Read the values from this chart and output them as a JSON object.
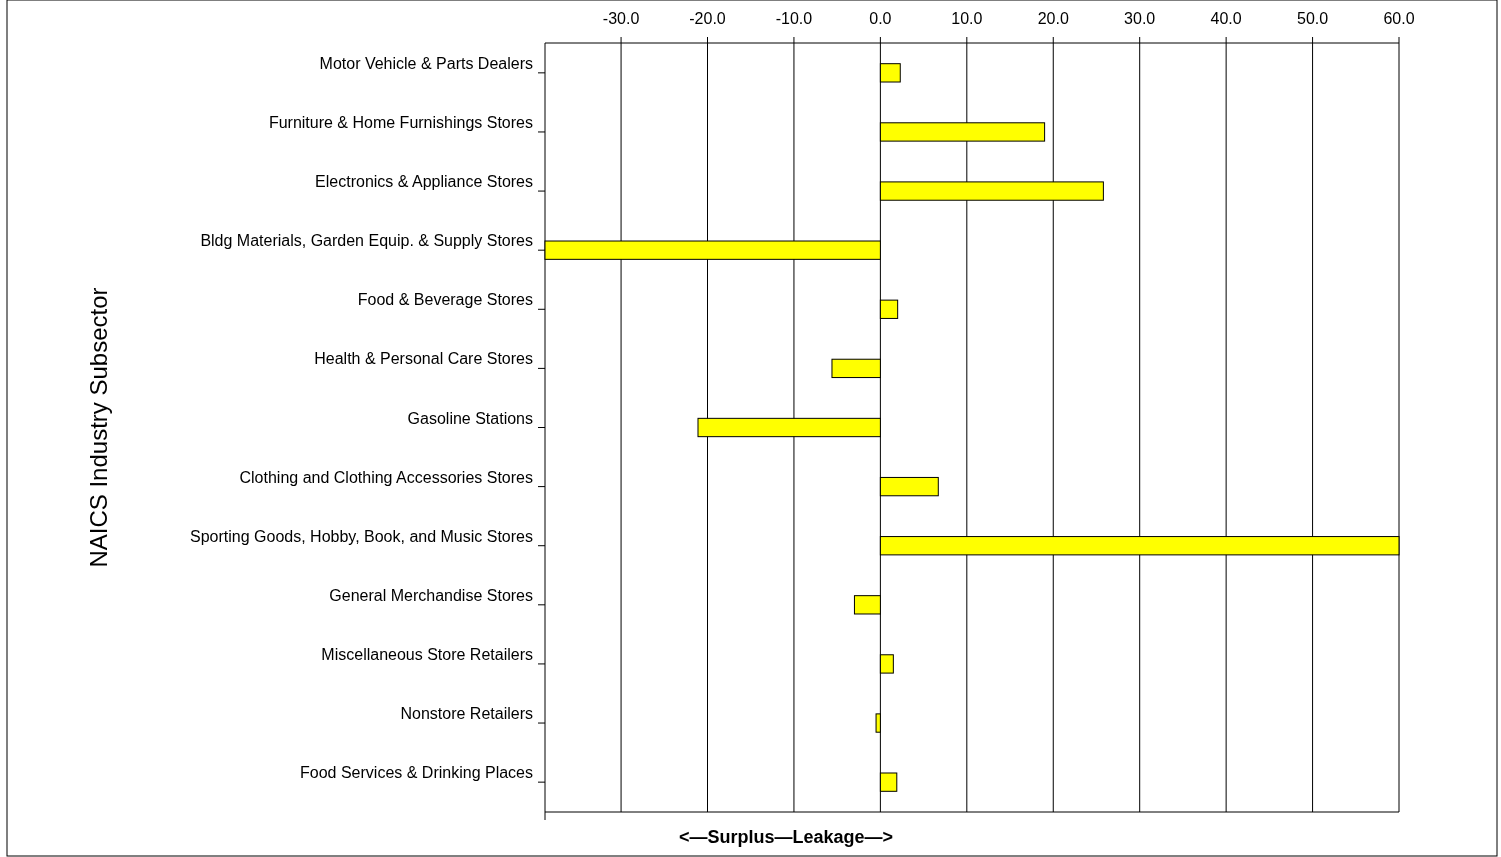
{
  "chart_data": {
    "type": "bar",
    "orientation": "horizontal",
    "xlabel": "<—Surplus—Leakage—>",
    "ylabel": "NAICS Industry Subsector",
    "categories": [
      "Motor Vehicle & Parts Dealers",
      "Furniture & Home Furnishings Stores",
      "Electronics & Appliance Stores",
      "Bldg Materials, Garden Equip. & Supply Stores",
      "Food & Beverage Stores",
      "Health & Personal Care Stores",
      "Gasoline Stations",
      "Clothing and Clothing Accessories Stores",
      "Sporting Goods, Hobby, Book, and Music Stores",
      "General Merchandise Stores",
      "Miscellaneous Store Retailers",
      "Nonstore Retailers",
      "Food Services & Drinking Places"
    ],
    "values": [
      2.3,
      19.0,
      25.8,
      -38.8,
      2.0,
      -5.6,
      -21.1,
      6.7,
      60,
      -3.0,
      1.5,
      -0.5,
      1.9
    ],
    "color": "#ffff00",
    "xlim": [
      -38.8,
      60
    ],
    "xticks": [
      {
        "value": -30,
        "label": "-30.0"
      },
      {
        "value": -20,
        "label": "-20.0"
      },
      {
        "value": -10,
        "label": "-10.0"
      },
      {
        "value": 0,
        "label": "0.0"
      },
      {
        "value": 10,
        "label": "10.0"
      },
      {
        "value": 20,
        "label": "20.0"
      },
      {
        "value": 30,
        "label": "30.0"
      },
      {
        "value": 40,
        "label": "40.0"
      },
      {
        "value": 50,
        "label": "50.0"
      },
      {
        "value": 60,
        "label": "60.0"
      }
    ],
    "grid": "x"
  }
}
